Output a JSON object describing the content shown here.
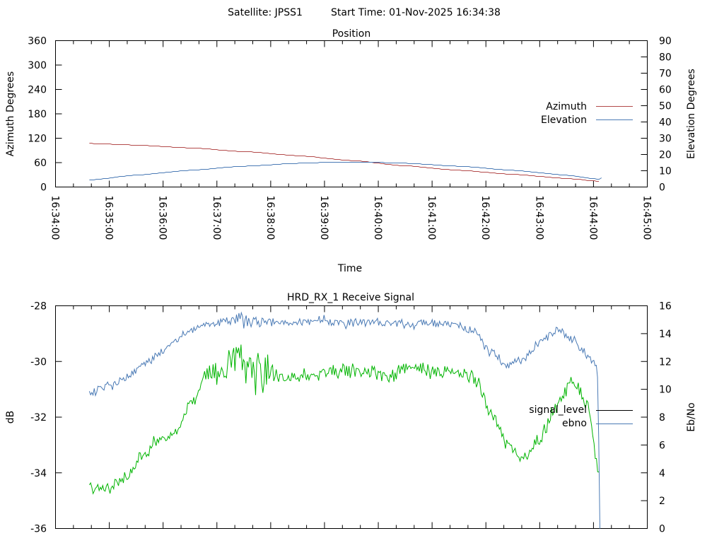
{
  "header": {
    "satellite_label": "Satellite: JPSS1",
    "start_time_label": "Start Time: 01-Nov-2025 16:34:38"
  },
  "colors": {
    "azimuth": "#b34a4a",
    "elevation": "#4a7ab5",
    "signal_level_line": "#00b400",
    "signal_level_legend": "#000000",
    "ebno": "#4a7ab5",
    "axis": "#000000"
  },
  "chart_data": [
    {
      "type": "line",
      "title": "Position",
      "xlabel": "Time",
      "ylabel": "Azimuth Degrees",
      "y2label": "Elevation Degrees",
      "xlim_minutes": [
        0,
        11
      ],
      "x_tick_labels": [
        "16:34:00",
        "16:35:00",
        "16:36:00",
        "16:37:00",
        "16:38:00",
        "16:39:00",
        "16:40:00",
        "16:41:00",
        "16:42:00",
        "16:43:00",
        "16:44:00",
        "16:45:00"
      ],
      "ylim": [
        0,
        360
      ],
      "y_tick_labels": [
        "0",
        "60",
        "120",
        "180",
        "240",
        "300",
        "360"
      ],
      "y2lim": [
        0,
        90
      ],
      "y2_tick_labels": [
        "0",
        "10",
        "20",
        "30",
        "40",
        "50",
        "60",
        "70",
        "80",
        "90"
      ],
      "legend_position": "right",
      "series": [
        {
          "name": "Azimuth",
          "axis": "y",
          "x_minutes": [
            0.63,
            1.5,
            2.5,
            3.5,
            4.5,
            5.5,
            6.5,
            7.5,
            8.5,
            9.5,
            10.1
          ],
          "values": [
            108,
            104,
            97,
            88,
            78,
            66,
            53,
            42,
            32,
            22,
            15
          ]
        },
        {
          "name": "Elevation",
          "axis": "y2",
          "x_minutes": [
            0.63,
            1.5,
            2.5,
            3.5,
            4.5,
            5.0,
            5.5,
            6.0,
            6.5,
            7.5,
            8.5,
            9.5,
            10.1,
            10.15
          ],
          "values": [
            4.5,
            7.5,
            10.5,
            13,
            14.8,
            15.3,
            15.4,
            15.3,
            14.8,
            13,
            10.5,
            7.5,
            5,
            6
          ]
        }
      ]
    },
    {
      "type": "line",
      "title": "HRD_RX_1 Receive Signal",
      "ylabel": "dB",
      "y2label": "Eb/No",
      "xlim_minutes": [
        0,
        11
      ],
      "ylim": [
        -36,
        -28
      ],
      "y_tick_labels": [
        "-36",
        "-34",
        "-32",
        "-30",
        "-28"
      ],
      "y2lim": [
        0,
        16
      ],
      "y2_tick_labels": [
        "0",
        "2",
        "4",
        "6",
        "8",
        "10",
        "12",
        "14",
        "16"
      ],
      "legend_position": "right",
      "series": [
        {
          "name": "signal_level",
          "axis": "y",
          "x_minutes": [
            0.63,
            1.0,
            1.3,
            1.6,
            1.9,
            2.2,
            2.5,
            2.8,
            3.1,
            3.4,
            3.7,
            4.0,
            4.3,
            4.6,
            5.0,
            5.4,
            5.8,
            6.2,
            6.6,
            7.0,
            7.4,
            7.8,
            8.1,
            8.4,
            8.7,
            9.0,
            9.3,
            9.6,
            9.9,
            10.1
          ],
          "values": [
            -34.6,
            -34.5,
            -34.2,
            -33.4,
            -32.8,
            -32.6,
            -31.6,
            -30.5,
            -30.2,
            -30.2,
            -30.4,
            -30.4,
            -30.6,
            -30.5,
            -30.4,
            -30.3,
            -30.4,
            -30.5,
            -30.2,
            -30.4,
            -30.3,
            -30.6,
            -31.8,
            -33.0,
            -33.4,
            -32.8,
            -31.6,
            -30.7,
            -31.6,
            -34.0
          ]
        },
        {
          "name": "ebno",
          "axis": "y2",
          "x_minutes": [
            0.63,
            1.0,
            1.3,
            1.6,
            1.9,
            2.2,
            2.5,
            2.8,
            3.1,
            3.4,
            3.7,
            4.0,
            4.3,
            4.6,
            5.0,
            5.4,
            5.8,
            6.2,
            6.6,
            7.0,
            7.4,
            7.8,
            8.1,
            8.4,
            8.7,
            9.0,
            9.3,
            9.6,
            9.9,
            10.07,
            10.1,
            10.12
          ],
          "values": [
            9.8,
            10.2,
            10.8,
            11.6,
            12.5,
            13.4,
            14.2,
            14.7,
            14.9,
            14.9,
            14.8,
            14.8,
            14.7,
            14.9,
            15.0,
            14.7,
            14.8,
            14.8,
            14.6,
            14.8,
            14.7,
            14.1,
            12.6,
            11.8,
            12.2,
            13.4,
            14.3,
            13.6,
            12.4,
            11.6,
            6,
            0
          ]
        }
      ]
    }
  ]
}
